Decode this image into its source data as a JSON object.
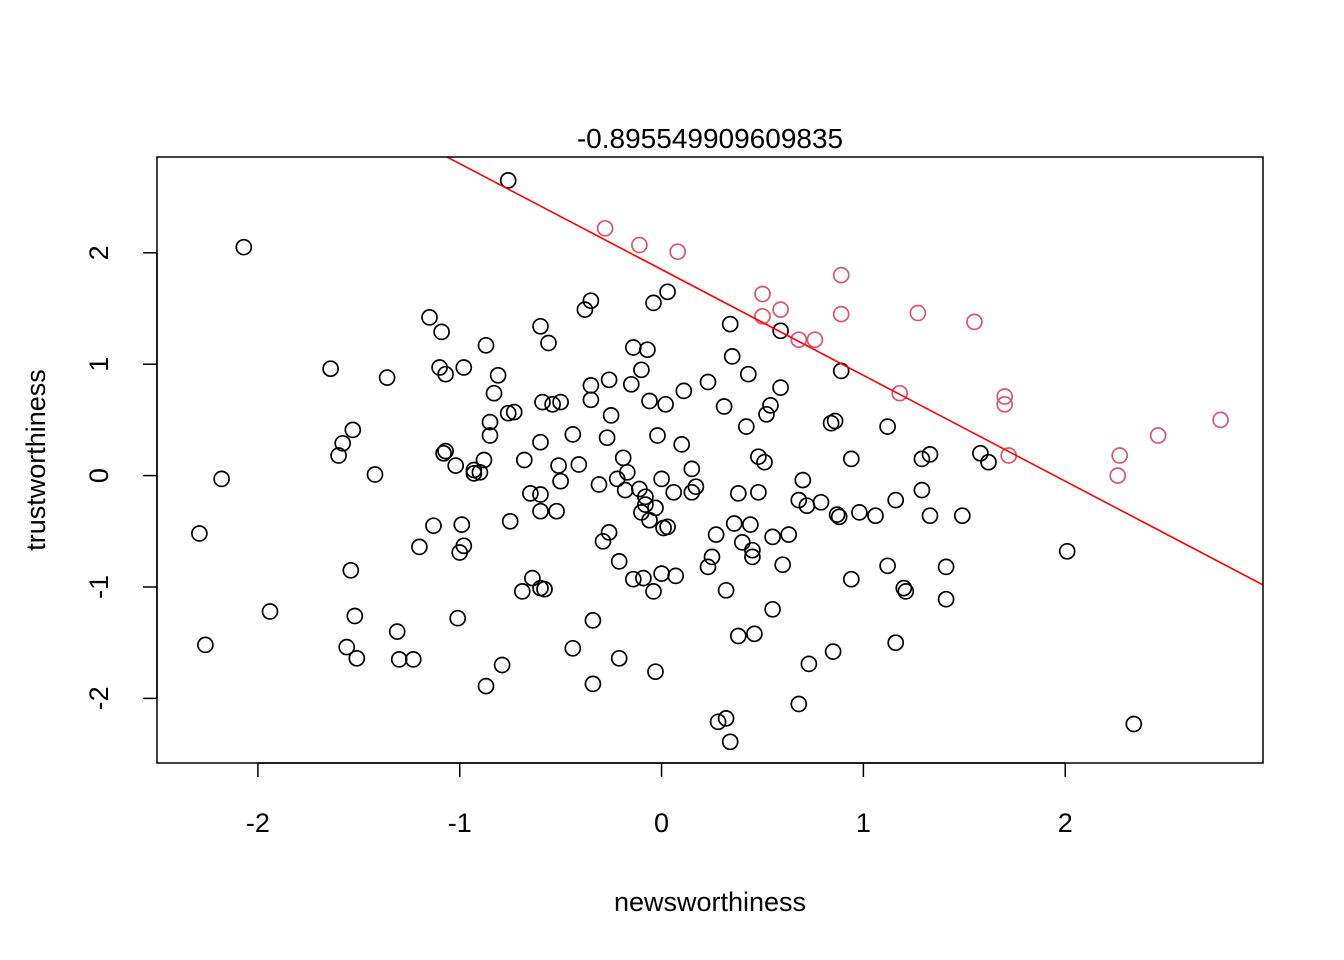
{
  "chart_data": {
    "type": "scatter",
    "title": "-0.895549909609835",
    "xlabel": "newsworthiness",
    "ylabel": "trustworthiness",
    "xlim": [
      -2.5,
      2.98
    ],
    "ylim": [
      -2.58,
      2.86
    ],
    "x_ticks": [
      "-2",
      "-1",
      "0",
      "1",
      "2"
    ],
    "x_tick_values": [
      -2,
      -1,
      0,
      1,
      2
    ],
    "y_ticks": [
      "-2",
      "-1",
      "0",
      "1",
      "2"
    ],
    "y_tick_values": [
      -2,
      -1,
      0,
      1,
      2
    ],
    "grid": false,
    "colors": {
      "unselected": "#000000",
      "selected": "#DF536B",
      "line": "#FF0000"
    },
    "line": {
      "intercept": 1.85,
      "slope": -0.95
    },
    "series": [
      {
        "values": [
          [
            -0.76,
            2.65
          ],
          [
            -2.07,
            2.05
          ],
          [
            -0.04,
            1.55
          ],
          [
            0.03,
            1.65
          ],
          [
            -0.35,
            1.57
          ],
          [
            -0.38,
            1.49
          ],
          [
            -1.15,
            1.42
          ],
          [
            -1.09,
            1.29
          ],
          [
            -0.6,
            1.34
          ],
          [
            -0.56,
            1.19
          ],
          [
            -0.87,
            1.17
          ],
          [
            -1.64,
            0.96
          ],
          [
            -1.1,
            0.97
          ],
          [
            -0.98,
            0.97
          ],
          [
            -1.07,
            0.91
          ],
          [
            -1.36,
            0.88
          ],
          [
            -0.81,
            0.9
          ],
          [
            -0.83,
            0.74
          ],
          [
            -0.14,
            1.15
          ],
          [
            -0.07,
            1.13
          ],
          [
            -0.1,
            0.95
          ],
          [
            -0.15,
            0.82
          ],
          [
            -0.35,
            0.81
          ],
          [
            -0.26,
            0.86
          ],
          [
            0.34,
            1.36
          ],
          [
            0.35,
            1.07
          ],
          [
            0.59,
            1.3
          ],
          [
            0.43,
            0.91
          ],
          [
            0.23,
            0.84
          ],
          [
            0.59,
            0.79
          ],
          [
            0.11,
            0.76
          ],
          [
            -0.35,
            0.68
          ],
          [
            -0.06,
            0.67
          ],
          [
            0.02,
            0.64
          ],
          [
            -0.59,
            0.66
          ],
          [
            -0.54,
            0.64
          ],
          [
            -0.5,
            0.66
          ],
          [
            -0.25,
            0.54
          ],
          [
            -0.73,
            0.57
          ],
          [
            -0.76,
            0.56
          ],
          [
            -0.85,
            0.48
          ],
          [
            -0.85,
            0.36
          ],
          [
            -0.44,
            0.37
          ],
          [
            -0.6,
            0.3
          ],
          [
            -0.27,
            0.34
          ],
          [
            -0.02,
            0.36
          ],
          [
            0.1,
            0.28
          ],
          [
            0.31,
            0.62
          ],
          [
            0.54,
            0.63
          ],
          [
            0.52,
            0.55
          ],
          [
            0.42,
            0.44
          ],
          [
            0.86,
            0.49
          ],
          [
            0.84,
            0.47
          ],
          [
            1.12,
            0.44
          ],
          [
            0.89,
            0.94
          ],
          [
            -1.53,
            0.41
          ],
          [
            -1.58,
            0.29
          ],
          [
            -1.6,
            0.18
          ],
          [
            -1.08,
            0.2
          ],
          [
            -1.07,
            0.22
          ],
          [
            -1.02,
            0.09
          ],
          [
            -0.88,
            0.14
          ],
          [
            -0.93,
            0.05
          ],
          [
            -0.93,
            0.02
          ],
          [
            -0.9,
            0.03
          ],
          [
            -0.68,
            0.14
          ],
          [
            -0.51,
            0.09
          ],
          [
            -0.41,
            0.1
          ],
          [
            -0.19,
            0.16
          ],
          [
            -0.17,
            0.03
          ],
          [
            0.15,
            0.06
          ],
          [
            0.0,
            -0.03
          ],
          [
            -0.22,
            -0.03
          ],
          [
            -0.5,
            -0.05
          ],
          [
            -0.65,
            -0.16
          ],
          [
            -0.6,
            -0.17
          ],
          [
            -0.31,
            -0.08
          ],
          [
            -0.11,
            -0.12
          ],
          [
            -0.18,
            -0.13
          ],
          [
            0.17,
            -0.1
          ],
          [
            0.15,
            -0.15
          ],
          [
            0.06,
            -0.15
          ],
          [
            -0.08,
            -0.19
          ],
          [
            -0.08,
            -0.26
          ],
          [
            -0.03,
            -0.29
          ],
          [
            -0.1,
            -0.33
          ],
          [
            -0.06,
            -0.4
          ],
          [
            -0.6,
            -0.32
          ],
          [
            -0.52,
            -0.32
          ],
          [
            -0.75,
            -0.41
          ],
          [
            -2.18,
            -0.03
          ],
          [
            -1.42,
            0.01
          ],
          [
            0.48,
            0.17
          ],
          [
            0.51,
            0.12
          ],
          [
            0.7,
            -0.04
          ],
          [
            0.94,
            0.15
          ],
          [
            1.29,
            0.15
          ],
          [
            1.33,
            0.19
          ],
          [
            1.58,
            0.2
          ],
          [
            1.62,
            0.12
          ],
          [
            1.29,
            -0.13
          ],
          [
            1.16,
            -0.22
          ],
          [
            0.68,
            -0.22
          ],
          [
            0.72,
            -0.27
          ],
          [
            0.79,
            -0.24
          ],
          [
            0.87,
            -0.35
          ],
          [
            0.88,
            -0.37
          ],
          [
            0.98,
            -0.33
          ],
          [
            1.06,
            -0.36
          ],
          [
            1.33,
            -0.36
          ],
          [
            1.49,
            -0.36
          ],
          [
            0.38,
            -0.16
          ],
          [
            0.48,
            -0.15
          ],
          [
            0.01,
            -0.47
          ],
          [
            0.03,
            -0.46
          ],
          [
            0.36,
            -0.43
          ],
          [
            0.44,
            -0.44
          ],
          [
            0.27,
            -0.53
          ],
          [
            0.55,
            -0.55
          ],
          [
            0.63,
            -0.53
          ],
          [
            -0.26,
            -0.51
          ],
          [
            -0.29,
            -0.59
          ],
          [
            -1.13,
            -0.45
          ],
          [
            -0.99,
            -0.44
          ],
          [
            -0.98,
            -0.63
          ],
          [
            -1.0,
            -0.69
          ],
          [
            -1.2,
            -0.64
          ],
          [
            -2.29,
            -0.52
          ],
          [
            -1.54,
            -0.85
          ],
          [
            -0.21,
            -0.77
          ],
          [
            -0.14,
            -0.93
          ],
          [
            -0.09,
            -0.92
          ],
          [
            -0.04,
            -1.04
          ],
          [
            0.0,
            -0.88
          ],
          [
            0.07,
            -0.9
          ],
          [
            0.23,
            -0.82
          ],
          [
            0.25,
            -0.73
          ],
          [
            0.32,
            -1.03
          ],
          [
            0.4,
            -0.6
          ],
          [
            0.45,
            -0.67
          ],
          [
            0.45,
            -0.73
          ],
          [
            0.6,
            -0.8
          ],
          [
            0.94,
            -0.93
          ],
          [
            1.12,
            -0.81
          ],
          [
            1.2,
            -1.01
          ],
          [
            1.21,
            -1.04
          ],
          [
            1.41,
            -0.82
          ],
          [
            1.41,
            -1.11
          ],
          [
            2.01,
            -0.68
          ],
          [
            -0.64,
            -0.92
          ],
          [
            -0.69,
            -1.04
          ],
          [
            -0.6,
            -1.01
          ],
          [
            -0.58,
            -1.02
          ],
          [
            -0.34,
            -1.3
          ],
          [
            -1.94,
            -1.22
          ],
          [
            -1.52,
            -1.26
          ],
          [
            -1.01,
            -1.28
          ],
          [
            -1.31,
            -1.4
          ],
          [
            -1.56,
            -1.54
          ],
          [
            -1.51,
            -1.64
          ],
          [
            -1.3,
            -1.65
          ],
          [
            -1.23,
            -1.65
          ],
          [
            -2.26,
            -1.52
          ],
          [
            -0.44,
            -1.55
          ],
          [
            -0.21,
            -1.64
          ],
          [
            -0.03,
            -1.76
          ],
          [
            -0.79,
            -1.7
          ],
          [
            -0.87,
            -1.89
          ],
          [
            -0.34,
            -1.87
          ],
          [
            0.38,
            -1.44
          ],
          [
            0.46,
            -1.42
          ],
          [
            0.55,
            -1.2
          ],
          [
            0.85,
            -1.58
          ],
          [
            1.16,
            -1.5
          ],
          [
            0.73,
            -1.69
          ],
          [
            0.68,
            -2.05
          ],
          [
            0.28,
            -2.21
          ],
          [
            0.32,
            -2.18
          ],
          [
            0.34,
            -2.39
          ],
          [
            2.34,
            -2.23
          ]
        ]
      },
      {
        "values": [
          [
            -0.28,
            2.22
          ],
          [
            -0.11,
            2.07
          ],
          [
            0.08,
            2.01
          ],
          [
            0.5,
            1.63
          ],
          [
            0.59,
            1.49
          ],
          [
            0.5,
            1.43
          ],
          [
            0.68,
            1.22
          ],
          [
            0.76,
            1.22
          ],
          [
            0.89,
            1.8
          ],
          [
            0.89,
            1.45
          ],
          [
            1.27,
            1.46
          ],
          [
            1.55,
            1.38
          ],
          [
            1.18,
            0.74
          ],
          [
            1.7,
            0.71
          ],
          [
            1.7,
            0.64
          ],
          [
            1.72,
            0.18
          ],
          [
            2.26,
            0.0
          ],
          [
            2.27,
            0.18
          ],
          [
            2.46,
            0.36
          ],
          [
            2.77,
            0.5
          ]
        ]
      }
    ]
  }
}
